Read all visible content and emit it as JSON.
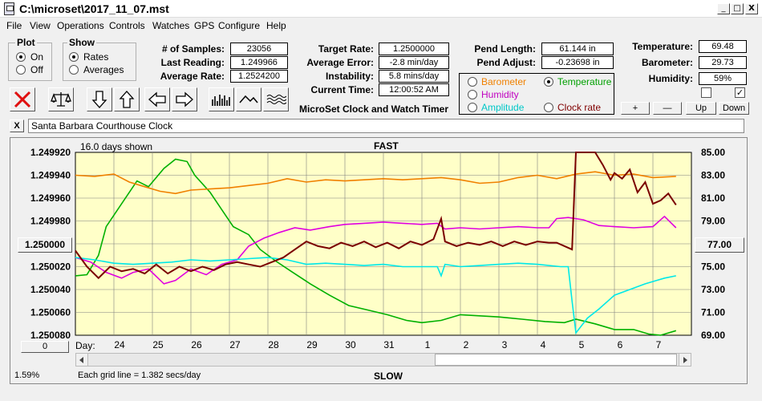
{
  "window": {
    "title": "C:\\microset\\2017_11_07.mst",
    "minimize": "_",
    "maximize": "□",
    "close": "X"
  },
  "menu": [
    "File",
    "View",
    "Operations",
    "Controls",
    "Watches",
    "GPS",
    "Configure",
    "Help"
  ],
  "plot_group": {
    "label": "Plot",
    "options": [
      "On",
      "Off"
    ],
    "selected": "On"
  },
  "show_group": {
    "label": "Show",
    "options": [
      "Rates",
      "Averages"
    ],
    "selected": "Rates"
  },
  "stats": [
    {
      "label": "# of Samples:",
      "value": "23056"
    },
    {
      "label": "Last Reading:",
      "value": "1.249966"
    },
    {
      "label": "Average Rate:",
      "value": "1.2524200"
    }
  ],
  "rates": [
    {
      "label": "Target Rate:",
      "value": "1.2500000"
    },
    {
      "label": "Average Error:",
      "value": "-2.8 min/day"
    },
    {
      "label": "Instability:",
      "value": "5.8 mins/day"
    },
    {
      "label": "Current Time:",
      "value": "12:00:52 AM"
    }
  ],
  "pendulum": [
    {
      "label": "Pend Length:",
      "value": "61.144 in"
    },
    {
      "label": "Pend Adjust:",
      "value": "-0.23698 in"
    }
  ],
  "environment": [
    {
      "label": "Temperature:",
      "value": "69.48"
    },
    {
      "label": "Barometer:",
      "value": "29.73"
    },
    {
      "label": "Humidity:",
      "value": "59%"
    }
  ],
  "series_options": [
    {
      "label": "Barometer",
      "color": "#f08000",
      "selected": false
    },
    {
      "label": "Temperature",
      "color": "#00a000",
      "selected": true
    },
    {
      "label": "Humidity",
      "color": "#c000c0",
      "selected": false
    },
    {
      "label": "Clock rate",
      "color": "#800000",
      "selected": false
    },
    {
      "label": "Amplitude",
      "color": "#00c8c8",
      "selected": false
    }
  ],
  "app_caption": "MicroSet Clock and Watch Timer",
  "scale_buttons": [
    "+",
    "—",
    "Up",
    "Down"
  ],
  "checkboxes": [
    "",
    "✓"
  ],
  "clock_name": "Santa Barbara Courthouse Clock",
  "clear_button": "X",
  "chart_data": {
    "type": "line",
    "days_shown": "16.0 days shown",
    "top_label": "FAST",
    "bottom_label": "SLOW",
    "grid_note": "Each grid line = 1.382 secs/day",
    "x_prefix": "Day:",
    "x_ticks": [
      "24",
      "25",
      "26",
      "27",
      "28",
      "29",
      "30",
      "31",
      "1",
      "2",
      "3",
      "4",
      "5",
      "6",
      "7"
    ],
    "y_left_ticks": [
      "1.249920",
      "1.249940",
      "1.249960",
      "1.249980",
      "1.250000",
      "1.250020",
      "1.250040",
      "1.250060",
      "1.250080"
    ],
    "y_left_range": [
      1.24992,
      1.25008
    ],
    "y_right_ticks": [
      "85.00",
      "83.00",
      "81.00",
      "79.00",
      "77.00",
      "75.00",
      "73.00",
      "71.00",
      "69.00"
    ],
    "y_right_range": [
      69,
      85
    ],
    "left_center_button": "1.250000",
    "right_center_button": "77.00",
    "left_zero_button": "0",
    "percent_label": "1.59%",
    "grid": true,
    "series": [
      {
        "name": "Temperature",
        "color": "#00b000",
        "axis": "right",
        "points": [
          [
            23.0,
            74.2
          ],
          [
            23.3,
            74.3
          ],
          [
            23.6,
            76
          ],
          [
            23.8,
            78.5
          ],
          [
            24.2,
            80.5
          ],
          [
            24.6,
            82.5
          ],
          [
            24.9,
            82
          ],
          [
            25.3,
            83.6
          ],
          [
            25.6,
            84.4
          ],
          [
            25.9,
            84.2
          ],
          [
            26.1,
            83
          ],
          [
            26.5,
            81.5
          ],
          [
            26.8,
            80
          ],
          [
            27.1,
            78.5
          ],
          [
            27.5,
            77.8
          ],
          [
            27.8,
            76.5
          ],
          [
            28.2,
            75.5
          ],
          [
            28.6,
            74.6
          ],
          [
            29.1,
            73.5
          ],
          [
            29.6,
            72.5
          ],
          [
            30.1,
            71.6
          ],
          [
            30.6,
            71.2
          ],
          [
            31.1,
            70.8
          ],
          [
            31.6,
            70.3
          ],
          [
            32.0,
            70.1
          ],
          [
            32.5,
            70.3
          ],
          [
            33.0,
            70.8
          ],
          [
            33.5,
            70.7
          ],
          [
            34.0,
            70.6
          ],
          [
            34.6,
            70.4
          ],
          [
            35.2,
            70.2
          ],
          [
            35.7,
            70.1
          ],
          [
            36.0,
            70.4
          ],
          [
            36.5,
            70.0
          ],
          [
            37.0,
            69.5
          ],
          [
            37.5,
            69.5
          ],
          [
            37.9,
            69.1
          ],
          [
            38.2,
            69.0
          ],
          [
            38.6,
            69.4
          ]
        ]
      },
      {
        "name": "Barometer",
        "color": "#f08000",
        "axis": "right",
        "points": [
          [
            23.0,
            83
          ],
          [
            23.5,
            82.9
          ],
          [
            24.0,
            83.1
          ],
          [
            24.4,
            82.4
          ],
          [
            24.8,
            82
          ],
          [
            25.2,
            81.6
          ],
          [
            25.6,
            81.4
          ],
          [
            26.0,
            81.7
          ],
          [
            26.5,
            81.8
          ],
          [
            27.0,
            81.9
          ],
          [
            27.5,
            82.1
          ],
          [
            28.0,
            82.3
          ],
          [
            28.5,
            82.7
          ],
          [
            29.0,
            82.4
          ],
          [
            29.5,
            82.6
          ],
          [
            30.0,
            82.5
          ],
          [
            30.5,
            82.6
          ],
          [
            31.0,
            82.7
          ],
          [
            31.5,
            82.6
          ],
          [
            32.0,
            82.7
          ],
          [
            32.5,
            82.8
          ],
          [
            33.0,
            82.6
          ],
          [
            33.5,
            82.3
          ],
          [
            34.0,
            82.4
          ],
          [
            34.5,
            82.8
          ],
          [
            35.0,
            83.0
          ],
          [
            35.5,
            82.7
          ],
          [
            36.0,
            83.1
          ],
          [
            36.5,
            83.3
          ],
          [
            37.0,
            83.0
          ],
          [
            37.5,
            83.1
          ],
          [
            38.0,
            82.8
          ],
          [
            38.6,
            82.9
          ]
        ]
      },
      {
        "name": "Humidity",
        "color": "#e000e0",
        "axis": "right",
        "points": [
          [
            23.0,
            75.8
          ],
          [
            23.4,
            75.4
          ],
          [
            23.8,
            74.5
          ],
          [
            24.2,
            74.0
          ],
          [
            24.5,
            74.5
          ],
          [
            24.9,
            74.8
          ],
          [
            25.3,
            73.5
          ],
          [
            25.6,
            73.8
          ],
          [
            26.0,
            74.8
          ],
          [
            26.4,
            74.3
          ],
          [
            26.8,
            75.2
          ],
          [
            27.2,
            75.6
          ],
          [
            27.5,
            76.8
          ],
          [
            27.9,
            77.5
          ],
          [
            28.3,
            78.0
          ],
          [
            28.7,
            78.4
          ],
          [
            29.1,
            78.2
          ],
          [
            29.6,
            78.5
          ],
          [
            30.0,
            78.7
          ],
          [
            30.5,
            78.8
          ],
          [
            31.0,
            78.9
          ],
          [
            31.5,
            78.8
          ],
          [
            32.0,
            78.7
          ],
          [
            32.4,
            78.8
          ],
          [
            32.6,
            78.3
          ],
          [
            33.0,
            78.4
          ],
          [
            33.5,
            78.3
          ],
          [
            34.0,
            78.4
          ],
          [
            34.5,
            78.5
          ],
          [
            35.0,
            78.4
          ],
          [
            35.3,
            78.4
          ],
          [
            35.5,
            79.2
          ],
          [
            35.8,
            79.3
          ],
          [
            36.2,
            79.1
          ],
          [
            36.6,
            78.6
          ],
          [
            37.0,
            78.5
          ],
          [
            37.5,
            78.4
          ],
          [
            38.0,
            78.5
          ],
          [
            38.3,
            79.4
          ],
          [
            38.6,
            78.4
          ]
        ]
      },
      {
        "name": "Amplitude",
        "color": "#00e8e8",
        "axis": "right",
        "points": [
          [
            23.0,
            75.8
          ],
          [
            23.5,
            75.6
          ],
          [
            24.0,
            75.3
          ],
          [
            24.5,
            75.2
          ],
          [
            25.0,
            75.3
          ],
          [
            25.5,
            75.4
          ],
          [
            26.0,
            75.6
          ],
          [
            26.5,
            75.5
          ],
          [
            27.0,
            75.6
          ],
          [
            27.5,
            75.7
          ],
          [
            28.0,
            75.8
          ],
          [
            28.5,
            75.6
          ],
          [
            29.0,
            75.2
          ],
          [
            29.5,
            75.3
          ],
          [
            30.0,
            75.2
          ],
          [
            30.5,
            75.1
          ],
          [
            31.0,
            75.2
          ],
          [
            31.5,
            75.0
          ],
          [
            32.0,
            75.0
          ],
          [
            32.4,
            75.0
          ],
          [
            32.5,
            74.2
          ],
          [
            32.6,
            75.2
          ],
          [
            33.0,
            75.0
          ],
          [
            33.5,
            75.1
          ],
          [
            34.0,
            75.2
          ],
          [
            34.5,
            75.3
          ],
          [
            35.0,
            75.2
          ],
          [
            35.6,
            75.0
          ],
          [
            35.8,
            75.0
          ],
          [
            35.9,
            72.0
          ],
          [
            36.0,
            69.2
          ],
          [
            36.3,
            70.5
          ],
          [
            36.6,
            71.3
          ],
          [
            37.0,
            72.5
          ],
          [
            37.4,
            73.0
          ],
          [
            37.8,
            73.5
          ],
          [
            38.1,
            73.8
          ],
          [
            38.3,
            74.0
          ],
          [
            38.6,
            74.2
          ]
        ]
      },
      {
        "name": "Clock rate",
        "color": "#7a0000",
        "axis": "left",
        "points": [
          [
            23.0,
            1.250006
          ],
          [
            23.3,
            1.25002
          ],
          [
            23.6,
            1.25003
          ],
          [
            23.9,
            1.25002
          ],
          [
            24.2,
            1.250024
          ],
          [
            24.5,
            1.250022
          ],
          [
            24.8,
            1.250026
          ],
          [
            25.1,
            1.250018
          ],
          [
            25.4,
            1.250026
          ],
          [
            25.7,
            1.25002
          ],
          [
            26.0,
            1.250024
          ],
          [
            26.3,
            1.25002
          ],
          [
            26.6,
            1.250023
          ],
          [
            26.9,
            1.250018
          ],
          [
            27.2,
            1.250016
          ],
          [
            27.5,
            1.250018
          ],
          [
            27.8,
            1.25002
          ],
          [
            28.1,
            1.250016
          ],
          [
            28.4,
            1.250012
          ],
          [
            28.7,
            1.250005
          ],
          [
            29.0,
            1.249998
          ],
          [
            29.3,
            1.250002
          ],
          [
            29.6,
            1.250004
          ],
          [
            29.9,
            1.249999
          ],
          [
            30.2,
            1.250002
          ],
          [
            30.5,
            1.249998
          ],
          [
            30.8,
            1.250003
          ],
          [
            31.1,
            1.249999
          ],
          [
            31.4,
            1.250004
          ],
          [
            31.7,
            1.249998
          ],
          [
            32.0,
            1.250001
          ],
          [
            32.3,
            1.249996
          ],
          [
            32.5,
            1.249978
          ],
          [
            32.6,
            1.249998
          ],
          [
            32.9,
            1.250002
          ],
          [
            33.2,
            1.249999
          ],
          [
            33.5,
            1.250001
          ],
          [
            33.8,
            1.249998
          ],
          [
            34.1,
            1.250002
          ],
          [
            34.4,
            1.249998
          ],
          [
            34.7,
            1.250001
          ],
          [
            35.0,
            1.249998
          ],
          [
            35.3,
            1.249999
          ],
          [
            35.5,
            1.249999
          ],
          [
            35.9,
            1.250005
          ],
          [
            36.0,
            1.249919
          ],
          [
            36.5,
            1.249919
          ],
          [
            36.7,
            1.249931
          ],
          [
            36.9,
            1.249944
          ],
          [
            37.0,
            1.249938
          ],
          [
            37.2,
            1.249943
          ],
          [
            37.4,
            1.249935
          ],
          [
            37.6,
            1.249955
          ],
          [
            37.8,
            1.249946
          ],
          [
            38.0,
            1.249965
          ],
          [
            38.2,
            1.249962
          ],
          [
            38.4,
            1.249956
          ],
          [
            38.6,
            1.249966
          ]
        ]
      }
    ]
  }
}
